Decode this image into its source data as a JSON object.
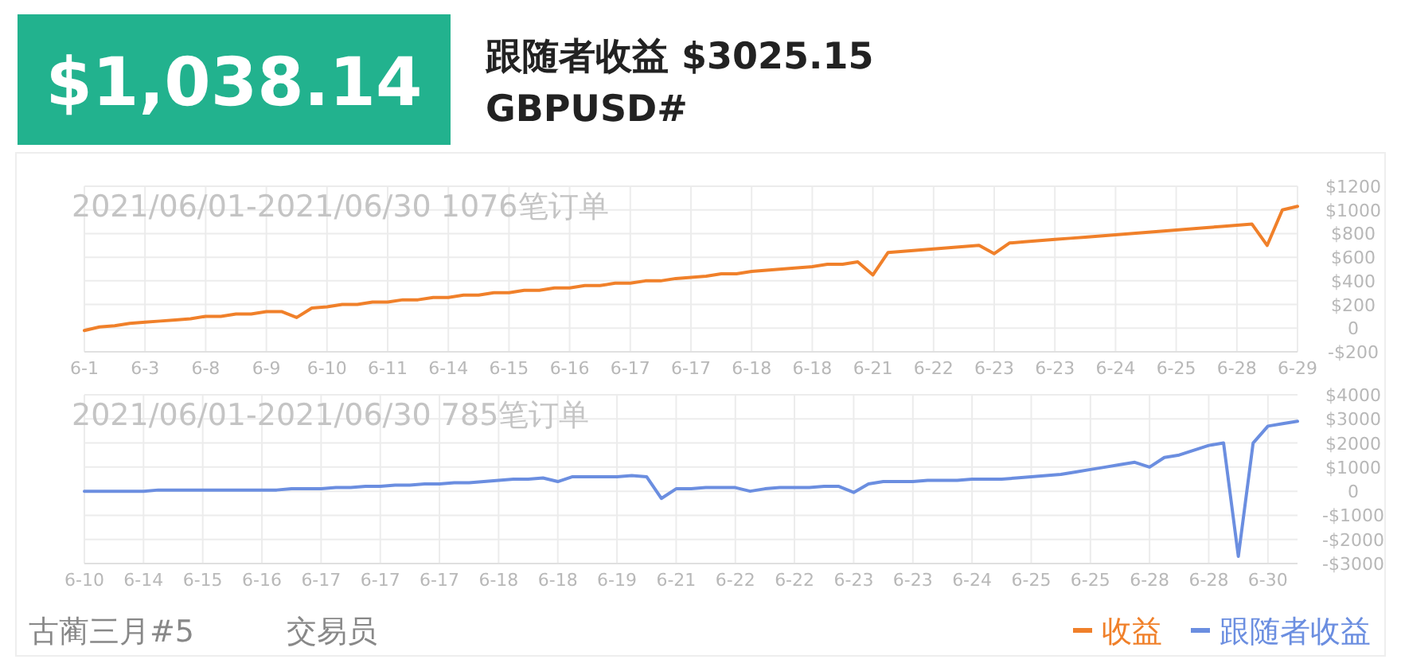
{
  "chart_data": [
    {
      "type": "line",
      "title": "2021/06/01-2021/06/30 1076笔订单",
      "annotations": [
        "$1,038.14",
        "跟随者收益 $3025.15",
        "GBPUSD#"
      ],
      "categories": [
        "6-1",
        null,
        null,
        null,
        "6-3",
        null,
        null,
        null,
        "6-8",
        null,
        null,
        null,
        "6-9",
        null,
        null,
        null,
        "6-10",
        null,
        null,
        null,
        "6-11",
        null,
        null,
        null,
        "6-14",
        null,
        null,
        null,
        "6-15",
        null,
        null,
        null,
        "6-16",
        null,
        null,
        null,
        "6-17",
        null,
        null,
        null,
        "6-17",
        null,
        null,
        null,
        "6-18",
        null,
        null,
        null,
        "6-18",
        null,
        null,
        null,
        "6-21",
        null,
        null,
        null,
        "6-22",
        null,
        null,
        null,
        "6-23",
        null,
        null,
        null,
        "6-23",
        null,
        null,
        null,
        "6-24",
        null,
        null,
        null,
        "6-25",
        null,
        null,
        null,
        "6-28",
        null,
        null,
        null,
        "6-29"
      ],
      "series": [
        {
          "name": "收益",
          "color": "#f0802a",
          "values": [
            -20,
            10,
            20,
            40,
            50,
            60,
            70,
            80,
            100,
            100,
            120,
            120,
            140,
            140,
            90,
            170,
            180,
            200,
            200,
            220,
            220,
            240,
            240,
            260,
            260,
            280,
            280,
            300,
            300,
            320,
            320,
            340,
            340,
            360,
            360,
            380,
            380,
            400,
            400,
            420,
            430,
            440,
            460,
            460,
            480,
            490,
            500,
            510,
            520,
            540,
            540,
            560,
            450,
            640,
            650,
            660,
            670,
            680,
            690,
            700,
            630,
            720,
            730,
            740,
            750,
            760,
            770,
            780,
            790,
            800,
            810,
            820,
            830,
            840,
            850,
            860,
            870,
            880,
            700,
            1000,
            1030
          ]
        }
      ],
      "ylim": [
        -200,
        1200
      ],
      "yticks": [
        {
          "value": -200,
          "label": "-$200"
        },
        0,
        {
          "value": 200,
          "label": "$200"
        },
        {
          "value": 400,
          "label": "$400"
        },
        {
          "value": 600,
          "label": "$600"
        },
        {
          "value": 800,
          "label": "$800"
        },
        {
          "value": 1000,
          "label": "$1000"
        },
        {
          "value": 1200,
          "label": "$1200"
        }
      ],
      "grid": true,
      "legend": "bottom right"
    },
    {
      "type": "line",
      "title": "2021/06/01-2021/06/30 785笔订单",
      "annotations": [
        "古蔺三月#5",
        "交易员"
      ],
      "categories": [
        "6-10",
        null,
        null,
        null,
        "6-14",
        null,
        null,
        null,
        "6-15",
        null,
        null,
        null,
        "6-16",
        null,
        null,
        null,
        "6-17",
        null,
        null,
        null,
        "6-17",
        null,
        null,
        null,
        "6-17",
        null,
        null,
        null,
        "6-18",
        null,
        null,
        null,
        "6-18",
        null,
        null,
        null,
        "6-19",
        null,
        null,
        null,
        "6-21",
        null,
        null,
        null,
        "6-22",
        null,
        null,
        null,
        "6-22",
        null,
        null,
        null,
        "6-23",
        null,
        null,
        null,
        "6-23",
        null,
        null,
        null,
        "6-24",
        null,
        null,
        null,
        "6-25",
        null,
        null,
        null,
        "6-25",
        null,
        null,
        null,
        "6-28",
        null,
        null,
        null,
        "6-28",
        null,
        null,
        null,
        "6-30",
        null,
        null
      ],
      "series": [
        {
          "name": "跟随者收益",
          "color": "#6b8ee0",
          "values": [
            0,
            0,
            0,
            0,
            0,
            50,
            50,
            50,
            50,
            50,
            50,
            50,
            50,
            50,
            100,
            100,
            100,
            150,
            150,
            200,
            200,
            250,
            250,
            300,
            300,
            350,
            350,
            400,
            450,
            500,
            500,
            550,
            400,
            600,
            600,
            600,
            600,
            650,
            600,
            -300,
            100,
            100,
            150,
            150,
            150,
            0,
            100,
            150,
            150,
            150,
            200,
            200,
            -50,
            300,
            400,
            400,
            400,
            450,
            450,
            450,
            500,
            500,
            500,
            550,
            600,
            650,
            700,
            800,
            900,
            1000,
            1100,
            1200,
            1000,
            1400,
            1500,
            1700,
            1900,
            2000,
            -2700,
            2000,
            2700,
            2800,
            2900
          ]
        }
      ],
      "ylim": [
        -3000,
        4000
      ],
      "yticks": [
        {
          "value": -3000,
          "label": "-$3000"
        },
        {
          "value": -2000,
          "label": "-$2000"
        },
        {
          "value": -1000,
          "label": "-$1000"
        },
        0,
        {
          "value": 1000,
          "label": "$1000"
        },
        {
          "value": 2000,
          "label": "$2000"
        },
        {
          "value": 3000,
          "label": "$3000"
        },
        {
          "value": 4000,
          "label": "$4000"
        }
      ],
      "grid": true,
      "legend": "bottom right"
    }
  ]
}
